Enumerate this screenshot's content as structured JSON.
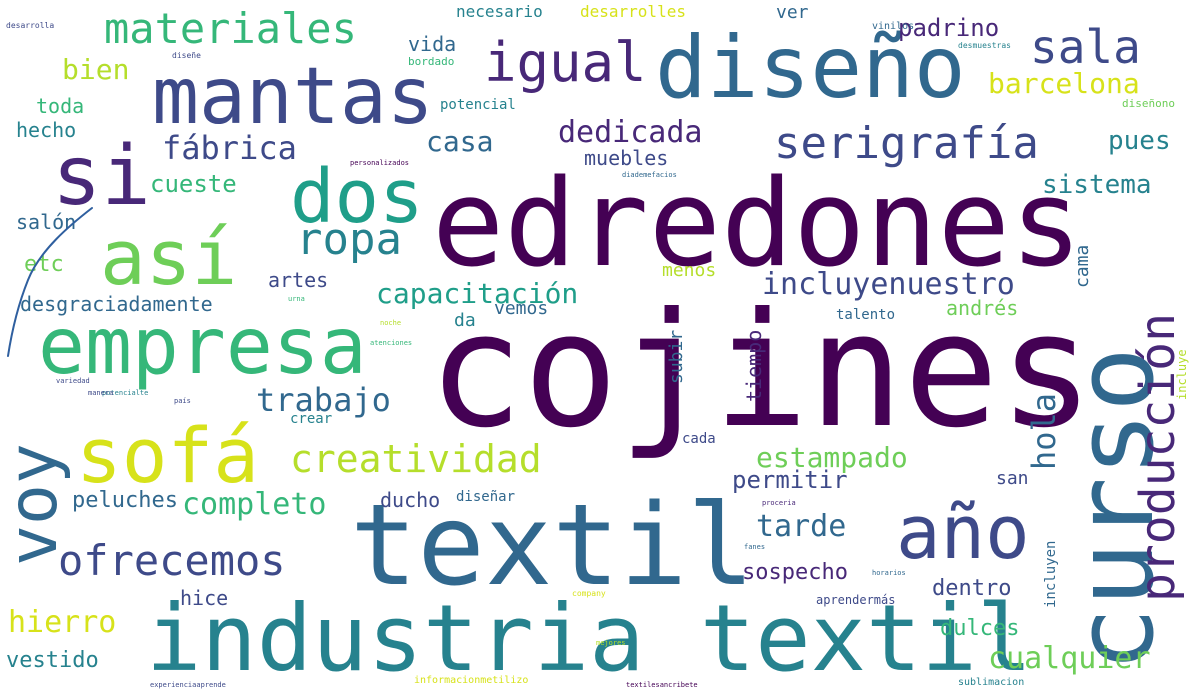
{
  "palette": {
    "dark_purple": "#440154",
    "purple": "#482878",
    "indigo": "#3e4a89",
    "slate_blue": "#31688e",
    "teal_blue": "#26828e",
    "teal": "#1f9e89",
    "green": "#35b779",
    "light_green": "#6ece58",
    "lime": "#b5de2b",
    "yellow": "#d7e21a",
    "stroke": "#2f5f9f"
  },
  "words": [
    {
      "text": "cojines"
    },
    {
      "text": "edredones"
    },
    {
      "text": "textil"
    },
    {
      "text": "industria textil"
    },
    {
      "text": "diseño"
    },
    {
      "text": "mantas"
    },
    {
      "text": "curso"
    },
    {
      "text": "si"
    },
    {
      "text": "dos"
    },
    {
      "text": "empresa"
    },
    {
      "text": "así"
    },
    {
      "text": "sofá"
    },
    {
      "text": "voy"
    },
    {
      "text": "año"
    },
    {
      "text": "producción"
    },
    {
      "text": "igual"
    },
    {
      "text": "sala"
    },
    {
      "text": "materiales"
    },
    {
      "text": "serigrafía"
    },
    {
      "text": "ropa"
    },
    {
      "text": "ofrecemos"
    },
    {
      "text": "creatividad"
    },
    {
      "text": "capacitación"
    },
    {
      "text": "incluyenuestro"
    },
    {
      "text": "fábrica"
    },
    {
      "text": "dedicada"
    },
    {
      "text": "trabajo"
    },
    {
      "text": "estampado"
    },
    {
      "text": "completo"
    },
    {
      "text": "tarde"
    },
    {
      "text": "hierro"
    },
    {
      "text": "cualquier"
    },
    {
      "text": "casa"
    },
    {
      "text": "barcelona"
    },
    {
      "text": "sistema"
    },
    {
      "text": "bien"
    },
    {
      "text": "hola"
    },
    {
      "text": "cueste"
    },
    {
      "text": "pues"
    },
    {
      "text": "padrino"
    },
    {
      "text": "vida"
    },
    {
      "text": "muebles"
    },
    {
      "text": "desgraciadamente"
    },
    {
      "text": "peluches"
    },
    {
      "text": "permitir"
    },
    {
      "text": "sospecho"
    },
    {
      "text": "dulces"
    },
    {
      "text": "vestido"
    },
    {
      "text": "dentro"
    },
    {
      "text": "ducho"
    },
    {
      "text": "hice"
    },
    {
      "text": "toda"
    },
    {
      "text": "hecho"
    },
    {
      "text": "salón"
    },
    {
      "text": "etc"
    },
    {
      "text": "artes"
    },
    {
      "text": "da"
    },
    {
      "text": "vemos"
    },
    {
      "text": "menos"
    },
    {
      "text": "andrés"
    },
    {
      "text": "subir"
    },
    {
      "text": "tiempo"
    },
    {
      "text": "cama"
    },
    {
      "text": "san"
    },
    {
      "text": "ver"
    },
    {
      "text": "necesario"
    },
    {
      "text": "desarrolles"
    },
    {
      "text": "potencial"
    },
    {
      "text": "bordado"
    },
    {
      "text": "talento"
    },
    {
      "text": "diseñar"
    },
    {
      "text": "cada"
    },
    {
      "text": "crear"
    },
    {
      "text": "incluyen"
    },
    {
      "text": "aprendermás"
    },
    {
      "text": "incluye"
    },
    {
      "text": "vinilos"
    },
    {
      "text": "desarrolla"
    },
    {
      "text": "diseñe"
    },
    {
      "text": "desmuestras"
    },
    {
      "text": "diseñono"
    },
    {
      "text": "personalizados"
    },
    {
      "text": "diademefacios"
    },
    {
      "text": "sublimacion"
    },
    {
      "text": "textilesancribete"
    },
    {
      "text": "experienciaaprende"
    },
    {
      "text": "informacionmetilizo"
    },
    {
      "text": "company"
    },
    {
      "text": "mejores"
    },
    {
      "text": "horarios"
    },
    {
      "text": "fanes"
    },
    {
      "text": "proceria"
    },
    {
      "text": "potencialte"
    },
    {
      "text": "variedad"
    },
    {
      "text": "manera"
    },
    {
      "text": "país"
    },
    {
      "text": "urna"
    },
    {
      "text": "noche"
    },
    {
      "text": "atenciones"
    }
  ]
}
